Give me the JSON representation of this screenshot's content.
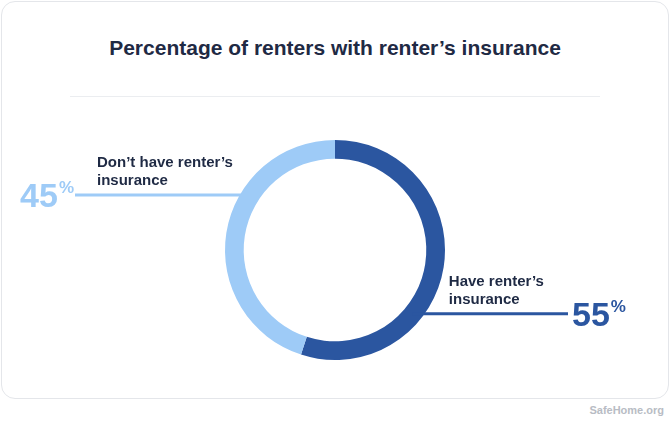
{
  "chart_data": {
    "type": "doughnut",
    "title": "Percentage of renters with renter’s insurance",
    "categories": [
      "Have renter’s insurance",
      "Don’t have renter’s insurance"
    ],
    "values": [
      55,
      45
    ],
    "value_labels": [
      "55%",
      "45%"
    ],
    "colors": [
      "#2b56a0",
      "#9ecbf7"
    ],
    "data_labels": true
  },
  "source": "SafeHome.org"
}
